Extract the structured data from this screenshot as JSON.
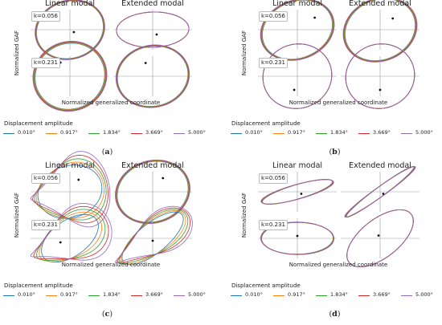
{
  "chart_data": [
    {
      "type": "line",
      "caption": "a",
      "column_titles": [
        "Linear modal",
        "Extended modal"
      ],
      "ylabel": "Normalized GAF",
      "xlabel": "Normalized generalized coordinate",
      "rows": [
        "k=0.056",
        "k=0.231"
      ],
      "legend_title": "Displacement amplitude",
      "series": [
        {
          "name": "0.010°",
          "color": "#1f77b4"
        },
        {
          "name": "0.917°",
          "color": "#ff7f0e"
        },
        {
          "name": "1.834°",
          "color": "#2ca02c"
        },
        {
          "name": "3.669°",
          "color": "#d62728"
        },
        {
          "name": "5.000°",
          "color": "#9467bd"
        }
      ]
    },
    {
      "type": "line",
      "caption": "b",
      "column_titles": [
        "Linear modal",
        "Extended modal"
      ],
      "ylabel": "Normalized GAF",
      "xlabel": "Normalized generalized coordinate",
      "rows": [
        "k=0.056",
        "k=0.231"
      ],
      "legend_title": "Displacement amplitude",
      "series": [
        {
          "name": "0.010°",
          "color": "#1f77b4"
        },
        {
          "name": "0.917°",
          "color": "#ff7f0e"
        },
        {
          "name": "1.834°",
          "color": "#2ca02c"
        },
        {
          "name": "3.669°",
          "color": "#d62728"
        },
        {
          "name": "5.000°",
          "color": "#9467bd"
        }
      ]
    },
    {
      "type": "line",
      "caption": "c",
      "column_titles": [
        "Linear modal",
        "Extended modal"
      ],
      "ylabel": "Normalized GAF",
      "xlabel": "Normalized generalized coordinate",
      "rows": [
        "k=0.056",
        "k=0.231"
      ],
      "legend_title": "Displacement amplitude",
      "series": [
        {
          "name": "0.010°",
          "color": "#1f77b4"
        },
        {
          "name": "0.917°",
          "color": "#ff7f0e"
        },
        {
          "name": "1.834°",
          "color": "#2ca02c"
        },
        {
          "name": "3.669°",
          "color": "#d62728"
        },
        {
          "name": "5.000°",
          "color": "#9467bd"
        }
      ]
    },
    {
      "type": "line",
      "caption": "d",
      "column_titles": [
        "Linear modal",
        "Extended modal"
      ],
      "ylabel": "Normalized GAF",
      "xlabel": "Normalized generalized coordinate",
      "rows": [
        "k=0.056",
        "k=0.231"
      ],
      "legend_title": "Displacement amplitude",
      "series": [
        {
          "name": "0.010°",
          "color": "#1f77b4"
        },
        {
          "name": "0.917°",
          "color": "#ff7f0e"
        },
        {
          "name": "1.834°",
          "color": "#2ca02c"
        },
        {
          "name": "3.669°",
          "color": "#d62728"
        },
        {
          "name": "5.000°",
          "color": "#9467bd"
        }
      ]
    }
  ]
}
